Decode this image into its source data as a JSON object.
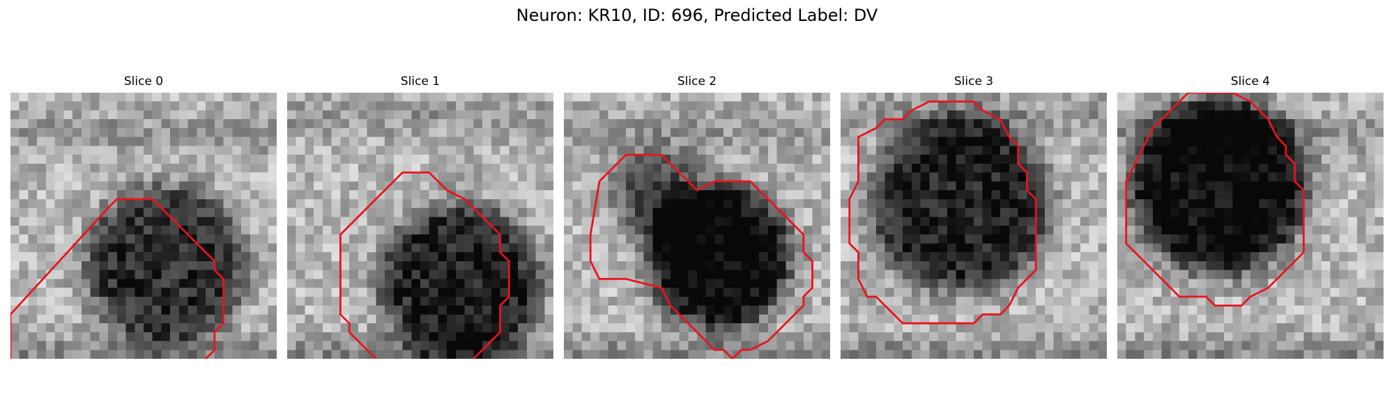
{
  "figure": {
    "title": "Neuron: KR10, ID: 696, Predicted Label: DV"
  },
  "panels": [
    {
      "title": "Slice 0"
    },
    {
      "title": "Slice 1"
    },
    {
      "title": "Slice 2"
    },
    {
      "title": "Slice 3"
    },
    {
      "title": "Slice 4"
    }
  ],
  "colors": {
    "contour": "#e8141e",
    "background": "#ffffff"
  }
}
